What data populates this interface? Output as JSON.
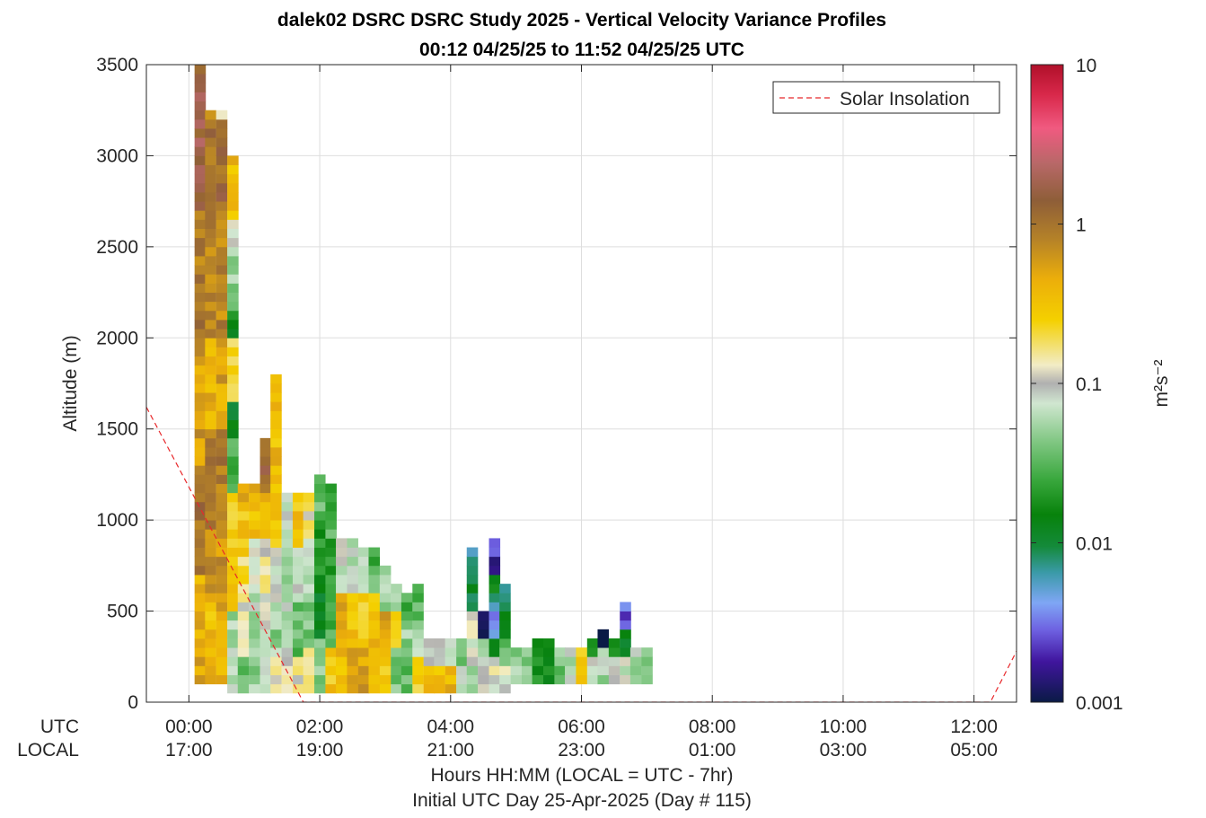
{
  "chart_data": {
    "type": "heatmap",
    "title_line1": "dalek02 DSRC DSRC Study 2025 - Vertical Velocity Variance Profiles",
    "title_line2": "00:12 04/25/25 to 11:52 04/25/25  UTC",
    "ylabel": "Altitude (m)",
    "xlabel_line1": "Hours HH:MM  (LOCAL = UTC - 7hr)",
    "xlabel_line2": "Initial UTC Day 25-Apr-2025 (Day # 115)",
    "utc_row_label": "UTC",
    "local_row_label": "LOCAL",
    "xlim_hours": [
      -0.65,
      12.65
    ],
    "ylim": [
      0,
      3500
    ],
    "grid": true,
    "x_ticks_utc": [
      "00:00",
      "02:00",
      "04:00",
      "06:00",
      "08:00",
      "10:00",
      "12:00"
    ],
    "x_ticks_local": [
      "17:00",
      "19:00",
      "21:00",
      "23:00",
      "01:00",
      "03:00",
      "05:00"
    ],
    "x_tick_hours": [
      0,
      2,
      4,
      6,
      8,
      10,
      12
    ],
    "y_ticks": [
      "0",
      "500",
      "1000",
      "1500",
      "2000",
      "2500",
      "3000",
      "3500"
    ],
    "y_tick_values": [
      0,
      500,
      1000,
      1500,
      2000,
      2500,
      3000,
      3500
    ],
    "legend": {
      "label": "Solar Insolation",
      "placement": "top-right",
      "color": "#e8282b"
    },
    "solar_insolation_line": {
      "x_hours": [
        -0.65,
        1.75,
        12.25,
        12.65
      ],
      "y_m": [
        1620,
        0,
        0,
        280
      ]
    },
    "colorbar": {
      "label": "m²s⁻²",
      "scale": "log",
      "range": [
        0.001,
        10
      ],
      "ticks": [
        "0.001",
        "0.01",
        "0.1",
        "1",
        "10"
      ],
      "tick_values": [
        0.001,
        0.01,
        0.1,
        1,
        10
      ],
      "stops": [
        {
          "v": 0.001,
          "color": "#0a1a46"
        },
        {
          "v": 0.0018,
          "color": "#40159e"
        },
        {
          "v": 0.0028,
          "color": "#6d5fe0"
        },
        {
          "v": 0.0042,
          "color": "#7fa6f5"
        },
        {
          "v": 0.0065,
          "color": "#3a9aa8"
        },
        {
          "v": 0.0095,
          "color": "#148a3a"
        },
        {
          "v": 0.015,
          "color": "#07820b"
        },
        {
          "v": 0.025,
          "color": "#3aa83e"
        },
        {
          "v": 0.045,
          "color": "#86c988"
        },
        {
          "v": 0.075,
          "color": "#d0e6d0"
        },
        {
          "v": 0.1,
          "color": "#b0b0b0"
        },
        {
          "v": 0.13,
          "color": "#f2ecc6"
        },
        {
          "v": 0.25,
          "color": "#f4d000"
        },
        {
          "v": 0.45,
          "color": "#ecae0a"
        },
        {
          "v": 0.8,
          "color": "#b58228"
        },
        {
          "v": 1.4,
          "color": "#8e5e38"
        },
        {
          "v": 2.4,
          "color": "#b86868"
        },
        {
          "v": 4.0,
          "color": "#f05a80"
        },
        {
          "v": 6.5,
          "color": "#d8284a"
        },
        {
          "v": 10,
          "color": "#b0102a"
        }
      ]
    },
    "bin_height_m": 50,
    "bin_width_hours": 0.1667,
    "profiles": [
      {
        "t": 0.17,
        "bottom": 100,
        "top": 3500,
        "bands": [
          [
            100,
            700,
            0.45
          ],
          [
            700,
            1300,
            1.1
          ],
          [
            1300,
            2000,
            0.55
          ],
          [
            2000,
            2700,
            0.9
          ],
          [
            2700,
            3500,
            1.6
          ]
        ]
      },
      {
        "t": 0.33,
        "bottom": 100,
        "top": 3250,
        "bands": [
          [
            100,
            300,
            0.45
          ],
          [
            300,
            600,
            0.35
          ],
          [
            600,
            1500,
            0.8
          ],
          [
            1500,
            2000,
            0.4
          ],
          [
            2000,
            2600,
            0.7
          ],
          [
            2600,
            3200,
            1.1
          ],
          [
            3200,
            3250,
            0.45
          ]
        ]
      },
      {
        "t": 0.5,
        "bottom": 100,
        "top": 3250,
        "bands": [
          [
            100,
            500,
            0.4
          ],
          [
            500,
            1000,
            0.6
          ],
          [
            1000,
            1500,
            0.9
          ],
          [
            1500,
            1950,
            0.5
          ],
          [
            1950,
            2700,
            0.8
          ],
          [
            2700,
            3200,
            1.2
          ],
          [
            3200,
            3250,
            0.1
          ]
        ]
      },
      {
        "t": 0.67,
        "bottom": 50,
        "top": 3000,
        "bands": [
          [
            50,
            500,
            0.06
          ],
          [
            500,
            750,
            0.3
          ],
          [
            750,
            1150,
            0.25
          ],
          [
            1150,
            1450,
            0.03
          ],
          [
            1450,
            1650,
            0.012
          ],
          [
            1650,
            2000,
            0.2
          ],
          [
            2000,
            2150,
            0.015
          ],
          [
            2150,
            2500,
            0.05
          ],
          [
            2500,
            2650,
            0.1
          ],
          [
            2650,
            3000,
            0.35
          ]
        ]
      },
      {
        "t": 0.83,
        "bottom": 50,
        "top": 1200,
        "bands": [
          [
            50,
            250,
            0.04
          ],
          [
            250,
            600,
            0.12
          ],
          [
            600,
            800,
            0.2
          ],
          [
            800,
            1050,
            0.3
          ],
          [
            1050,
            1200,
            0.45
          ]
        ]
      },
      {
        "t": 1.0,
        "bottom": 50,
        "top": 1200,
        "bands": [
          [
            50,
            300,
            0.05
          ],
          [
            300,
            650,
            0.06
          ],
          [
            650,
            900,
            0.1
          ],
          [
            900,
            1100,
            0.3
          ],
          [
            1100,
            1200,
            0.45
          ]
        ]
      },
      {
        "t": 1.17,
        "bottom": 50,
        "top": 1450,
        "bands": [
          [
            50,
            350,
            0.08
          ],
          [
            350,
            600,
            0.1
          ],
          [
            600,
            900,
            0.12
          ],
          [
            900,
            1150,
            0.4
          ],
          [
            1150,
            1450,
            1.2
          ]
        ]
      },
      {
        "t": 1.33,
        "bottom": 50,
        "top": 1800,
        "bands": [
          [
            50,
            250,
            0.12
          ],
          [
            250,
            550,
            0.05
          ],
          [
            550,
            850,
            0.08
          ],
          [
            850,
            1200,
            0.3
          ],
          [
            1200,
            1800,
            0.35
          ]
        ]
      },
      {
        "t": 1.5,
        "bottom": 50,
        "top": 1150,
        "bands": [
          [
            50,
            300,
            0.1
          ],
          [
            300,
            600,
            0.06
          ],
          [
            600,
            900,
            0.05
          ],
          [
            900,
            1150,
            0.08
          ]
        ]
      },
      {
        "t": 1.67,
        "bottom": 50,
        "top": 1150,
        "bands": [
          [
            50,
            250,
            0.12
          ],
          [
            250,
            550,
            0.035
          ],
          [
            550,
            850,
            0.08
          ],
          [
            850,
            1150,
            0.3
          ]
        ]
      },
      {
        "t": 1.83,
        "bottom": 50,
        "top": 1150,
        "bands": [
          [
            50,
            300,
            0.2
          ],
          [
            300,
            600,
            0.04
          ],
          [
            600,
            900,
            0.07
          ],
          [
            900,
            1150,
            0.15
          ]
        ]
      },
      {
        "t": 2.0,
        "bottom": 50,
        "top": 1250,
        "bands": [
          [
            50,
            350,
            0.05
          ],
          [
            350,
            700,
            0.012
          ],
          [
            700,
            1050,
            0.02
          ],
          [
            1050,
            1250,
            0.04
          ]
        ]
      },
      {
        "t": 2.17,
        "bottom": 50,
        "top": 1200,
        "bands": [
          [
            50,
            300,
            0.3
          ],
          [
            300,
            600,
            0.03
          ],
          [
            600,
            900,
            0.02
          ],
          [
            900,
            1200,
            0.03
          ]
        ]
      },
      {
        "t": 2.33,
        "bottom": 50,
        "top": 900,
        "bands": [
          [
            50,
            300,
            0.35
          ],
          [
            300,
            600,
            0.5
          ],
          [
            600,
            900,
            0.08
          ]
        ]
      },
      {
        "t": 2.5,
        "bottom": 50,
        "top": 900,
        "bands": [
          [
            50,
            300,
            0.5
          ],
          [
            300,
            600,
            0.3
          ],
          [
            600,
            900,
            0.06
          ]
        ]
      },
      {
        "t": 2.67,
        "bottom": 50,
        "top": 850,
        "bands": [
          [
            50,
            300,
            0.5
          ],
          [
            300,
            600,
            0.25
          ],
          [
            600,
            850,
            0.07
          ]
        ]
      },
      {
        "t": 2.83,
        "bottom": 50,
        "top": 850,
        "bands": [
          [
            50,
            300,
            0.4
          ],
          [
            300,
            600,
            0.35
          ],
          [
            600,
            850,
            0.03
          ]
        ]
      },
      {
        "t": 3.0,
        "bottom": 50,
        "top": 750,
        "bands": [
          [
            50,
            250,
            0.3
          ],
          [
            250,
            500,
            0.5
          ],
          [
            500,
            750,
            0.06
          ]
        ]
      },
      {
        "t": 3.17,
        "bottom": 50,
        "top": 650,
        "bands": [
          [
            50,
            300,
            0.04
          ],
          [
            300,
            500,
            0.3
          ],
          [
            500,
            650,
            0.05
          ]
        ]
      },
      {
        "t": 3.33,
        "bottom": 50,
        "top": 600,
        "bands": [
          [
            50,
            250,
            0.035
          ],
          [
            250,
            450,
            0.05
          ],
          [
            450,
            600,
            0.03
          ]
        ]
      },
      {
        "t": 3.5,
        "bottom": 50,
        "top": 650,
        "bands": [
          [
            50,
            250,
            0.25
          ],
          [
            250,
            450,
            0.06
          ],
          [
            450,
            650,
            0.03
          ]
        ]
      },
      {
        "t": 3.67,
        "bottom": 50,
        "top": 350,
        "bands": [
          [
            50,
            200,
            0.3
          ],
          [
            200,
            350,
            0.08
          ]
        ]
      },
      {
        "t": 3.83,
        "bottom": 50,
        "top": 350,
        "bands": [
          [
            50,
            200,
            0.35
          ],
          [
            200,
            350,
            0.1
          ]
        ]
      },
      {
        "t": 4.0,
        "bottom": 50,
        "top": 350,
        "bands": [
          [
            50,
            200,
            0.4
          ],
          [
            200,
            350,
            0.06
          ]
        ]
      },
      {
        "t": 4.17,
        "bottom": 50,
        "top": 350,
        "bands": [
          [
            50,
            200,
            0.08
          ],
          [
            200,
            350,
            0.04
          ]
        ]
      },
      {
        "t": 4.33,
        "bottom": 50,
        "top": 850,
        "bands": [
          [
            50,
            200,
            0.06
          ],
          [
            200,
            500,
            0.1
          ],
          [
            500,
            700,
            0.012
          ],
          [
            700,
            850,
            0.006
          ]
        ]
      },
      {
        "t": 4.5,
        "bottom": 50,
        "top": 500,
        "bands": [
          [
            50,
            200,
            0.12
          ],
          [
            200,
            350,
            0.07
          ],
          [
            350,
            500,
            0.001
          ]
        ]
      },
      {
        "t": 4.67,
        "bottom": 50,
        "top": 900,
        "bands": [
          [
            50,
            250,
            0.1
          ],
          [
            250,
            350,
            0.015
          ],
          [
            350,
            550,
            0.004
          ],
          [
            550,
            700,
            0.012
          ],
          [
            700,
            900,
            0.002
          ]
        ]
      },
      {
        "t": 4.83,
        "bottom": 50,
        "top": 650,
        "bands": [
          [
            50,
            200,
            0.1
          ],
          [
            200,
            350,
            0.04
          ],
          [
            350,
            650,
            0.01
          ]
        ]
      },
      {
        "t": 5.0,
        "bottom": 100,
        "top": 300,
        "bands": [
          [
            100,
            300,
            0.05
          ]
        ]
      },
      {
        "t": 5.17,
        "bottom": 100,
        "top": 300,
        "bands": [
          [
            100,
            300,
            0.04
          ]
        ]
      },
      {
        "t": 5.33,
        "bottom": 100,
        "top": 350,
        "bands": [
          [
            100,
            350,
            0.02
          ]
        ]
      },
      {
        "t": 5.5,
        "bottom": 100,
        "top": 350,
        "bands": [
          [
            100,
            350,
            0.015
          ]
        ]
      },
      {
        "t": 5.67,
        "bottom": 100,
        "top": 300,
        "bands": [
          [
            100,
            300,
            0.04
          ]
        ]
      },
      {
        "t": 5.83,
        "bottom": 100,
        "top": 300,
        "bands": [
          [
            100,
            300,
            0.06
          ]
        ]
      },
      {
        "t": 6.0,
        "bottom": 100,
        "top": 300,
        "bands": [
          [
            100,
            300,
            0.3
          ]
        ]
      },
      {
        "t": 6.17,
        "bottom": 100,
        "top": 350,
        "bands": [
          [
            100,
            250,
            0.08
          ],
          [
            250,
            350,
            0.015
          ]
        ]
      },
      {
        "t": 6.33,
        "bottom": 100,
        "top": 400,
        "bands": [
          [
            100,
            300,
            0.06
          ],
          [
            300,
            400,
            0.001
          ]
        ]
      },
      {
        "t": 6.5,
        "bottom": 100,
        "top": 350,
        "bands": [
          [
            100,
            250,
            0.1
          ],
          [
            250,
            350,
            0.02
          ]
        ]
      },
      {
        "t": 6.67,
        "bottom": 100,
        "top": 550,
        "bands": [
          [
            100,
            250,
            0.08
          ],
          [
            250,
            400,
            0.01
          ],
          [
            400,
            550,
            0.003
          ]
        ]
      },
      {
        "t": 6.83,
        "bottom": 100,
        "top": 300,
        "bands": [
          [
            100,
            300,
            0.06
          ]
        ]
      },
      {
        "t": 7.0,
        "bottom": 100,
        "top": 300,
        "bands": [
          [
            100,
            300,
            0.04
          ]
        ]
      }
    ]
  }
}
